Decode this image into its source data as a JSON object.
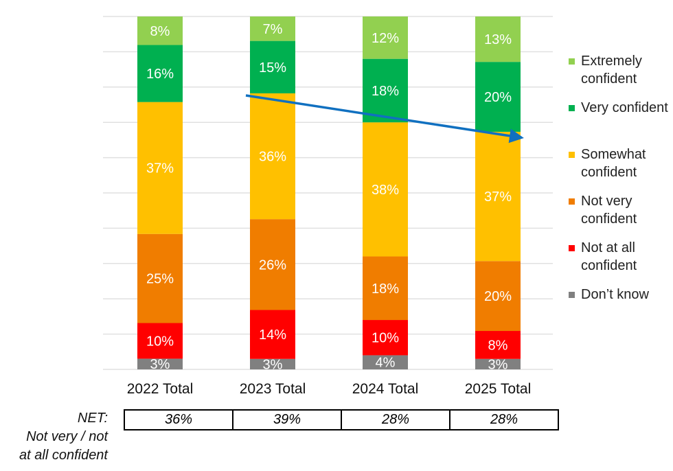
{
  "chart_data": {
    "type": "bar",
    "stacked": true,
    "categories": [
      "2022 Total",
      "2023 Total",
      "2024 Total",
      "2025 Total"
    ],
    "series": [
      {
        "name": "Don’t know",
        "color": "#808080",
        "values": [
          3,
          3,
          4,
          3
        ]
      },
      {
        "name": "Not at all confident",
        "color": "#FF0000",
        "values": [
          10,
          14,
          10,
          8
        ]
      },
      {
        "name": "Not very confident",
        "color": "#F07D00",
        "values": [
          25,
          26,
          18,
          20
        ]
      },
      {
        "name": "Somewhat confident",
        "color": "#FFC000",
        "values": [
          37,
          36,
          38,
          37
        ]
      },
      {
        "name": "Very confident",
        "color": "#00B050",
        "values": [
          16,
          15,
          18,
          20
        ]
      },
      {
        "name": "Extremely confident",
        "color": "#92D050",
        "values": [
          8,
          7,
          12,
          13
        ]
      }
    ],
    "data_label_format": "{v}%",
    "ylim": [
      0,
      100
    ],
    "grid": true,
    "legend_placement": "right",
    "annotation": {
      "type": "trend-arrow",
      "color": "#1070C0",
      "direction": "downward, from 2023 to 2025 top of Somewhat confident"
    }
  },
  "legend": [
    {
      "label": "Extremely confident",
      "color": "#92D050"
    },
    {
      "label": "Very confident",
      "color": "#00B050"
    },
    {
      "label": "Somewhat confident",
      "color": "#FFC000"
    },
    {
      "label": "Not very confident",
      "color": "#F07D00"
    },
    {
      "label": "Not at all confident",
      "color": "#FF0000"
    },
    {
      "label": "Don’t know",
      "color": "#808080"
    }
  ],
  "net": {
    "label_line1": "NET:",
    "label_line2": "Not very / not",
    "label_line3": "at all confident",
    "values": [
      "36%",
      "39%",
      "28%",
      "28%"
    ]
  }
}
